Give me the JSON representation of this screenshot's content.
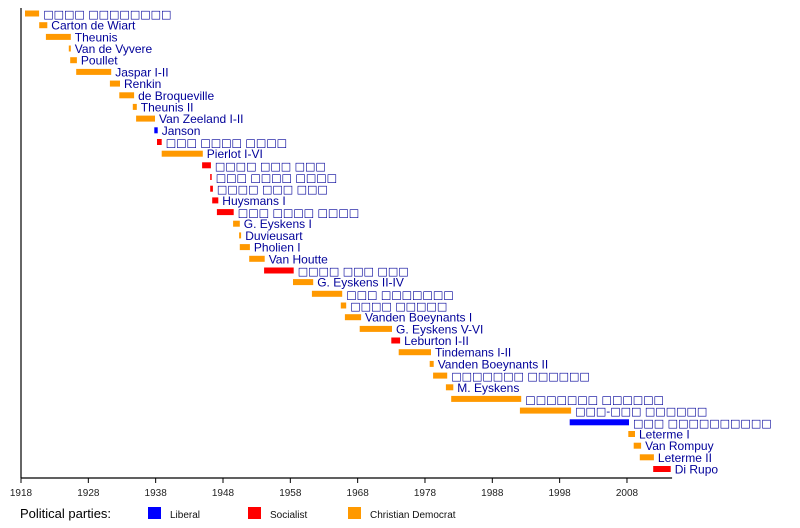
{
  "chart_data": {
    "type": "bar",
    "subtype": "horizontal-timeline",
    "title": "",
    "xlabel": "",
    "ylabel": "",
    "xlim": [
      1918,
      2014.7
    ],
    "x_ticks": [
      1918,
      1928,
      1938,
      1948,
      1958,
      1968,
      1978,
      1988,
      1998,
      2008
    ],
    "grid": false,
    "legend": {
      "title": "Political parties:",
      "placement": "bottom",
      "entries": [
        {
          "name": "Liberal",
          "color": "#0000ff"
        },
        {
          "name": "Socialist",
          "color": "#ff0000"
        },
        {
          "name": "Christian Democrat",
          "color": "#ff9900"
        }
      ]
    },
    "party_colors": {
      "Liberal": "#0000ff",
      "Socialist": "#ff0000",
      "Christian Democrat": "#ff9900"
    },
    "label_color": "#000099",
    "series": [
      {
        "label": "□□□□ □□□□□□□□",
        "party": "Christian Democrat",
        "start": 1918.6,
        "end": 1920.7,
        "tofu": true
      },
      {
        "label": "Carton de Wiart",
        "party": "Christian Democrat",
        "start": 1920.7,
        "end": 1921.9
      },
      {
        "label": "Theunis",
        "party": "Christian Democrat",
        "start": 1921.7,
        "end": 1925.4
      },
      {
        "label": "Van de Vyvere",
        "party": "Christian Democrat",
        "start": 1925.1,
        "end": 1925.4
      },
      {
        "label": "Poullet",
        "party": "Christian Democrat",
        "start": 1925.3,
        "end": 1926.3
      },
      {
        "label": "Jaspar I-II",
        "party": "Christian Democrat",
        "start": 1926.2,
        "end": 1931.4
      },
      {
        "label": "Renkin",
        "party": "Christian Democrat",
        "start": 1931.2,
        "end": 1932.7
      },
      {
        "label": "de Broqueville",
        "party": "Christian Democrat",
        "start": 1932.6,
        "end": 1934.8
      },
      {
        "label": "Theunis II",
        "party": "Christian Democrat",
        "start": 1934.6,
        "end": 1935.2
      },
      {
        "label": "Van Zeeland I-II",
        "party": "Christian Democrat",
        "start": 1935.1,
        "end": 1937.9
      },
      {
        "label": "Janson",
        "party": "Liberal",
        "start": 1937.8,
        "end": 1938.3
      },
      {
        "label": "□□□ □□□□ □□□□",
        "party": "Socialist",
        "start": 1938.2,
        "end": 1938.9,
        "tofu": true
      },
      {
        "label": "Pierlot I-VI",
        "party": "Christian Democrat",
        "start": 1938.9,
        "end": 1945.0
      },
      {
        "label": "□□□□ □□□ □□□",
        "party": "Socialist",
        "start": 1944.9,
        "end": 1946.2,
        "tofu": true
      },
      {
        "label": "□□□ □□□□ □□□□",
        "party": "Socialist",
        "start": 1946.1,
        "end": 1946.25,
        "tofu": true
      },
      {
        "label": "□□□□ □□□ □□□",
        "party": "Socialist",
        "start": 1946.1,
        "end": 1946.5,
        "tofu": true
      },
      {
        "label": "Huysmans I",
        "party": "Socialist",
        "start": 1946.4,
        "end": 1947.3
      },
      {
        "label": "□□□ □□□□ □□□□",
        "party": "Socialist",
        "start": 1947.1,
        "end": 1949.6,
        "tofu": true
      },
      {
        "label": "G. Eyskens I",
        "party": "Christian Democrat",
        "start": 1949.5,
        "end": 1950.5
      },
      {
        "label": "Duvieusart",
        "party": "Christian Democrat",
        "start": 1950.4,
        "end": 1950.7
      },
      {
        "label": "Pholien I",
        "party": "Christian Democrat",
        "start": 1950.5,
        "end": 1952.0
      },
      {
        "label": "Van Houtte",
        "party": "Christian Democrat",
        "start": 1951.9,
        "end": 1954.2
      },
      {
        "label": "□□□□ □□□ □□□",
        "party": "Socialist",
        "start": 1954.1,
        "end": 1958.5,
        "tofu": true
      },
      {
        "label": "G. Eyskens II-IV",
        "party": "Christian Democrat",
        "start": 1958.4,
        "end": 1961.4
      },
      {
        "label": "□□□ □□□□□□□",
        "party": "Christian Democrat",
        "start": 1961.2,
        "end": 1965.7,
        "tofu": true
      },
      {
        "label": "□□□□ □□□□□",
        "party": "Christian Democrat",
        "start": 1965.5,
        "end": 1966.3,
        "tofu": true
      },
      {
        "label": "Vanden Boeynants I",
        "party": "Christian Democrat",
        "start": 1966.1,
        "end": 1968.5
      },
      {
        "label": "G. Eyskens V-VI",
        "party": "Christian Democrat",
        "start": 1968.3,
        "end": 1973.1
      },
      {
        "label": "Leburton I-II",
        "party": "Socialist",
        "start": 1973.0,
        "end": 1974.3
      },
      {
        "label": "Tindemans I-II",
        "party": "Christian Democrat",
        "start": 1974.1,
        "end": 1978.9
      },
      {
        "label": "Vanden Boeynants II",
        "party": "Christian Democrat",
        "start": 1978.7,
        "end": 1979.3
      },
      {
        "label": "□□□□□□□ □□□□□□",
        "party": "Christian Democrat",
        "start": 1979.2,
        "end": 1981.3,
        "tofu": true
      },
      {
        "label": "M. Eyskens",
        "party": "Christian Democrat",
        "start": 1981.1,
        "end": 1982.2
      },
      {
        "label": "□□□□□□□ □□□□□□",
        "party": "Christian Democrat",
        "start": 1981.9,
        "end": 1992.3,
        "tofu": true
      },
      {
        "label": "□□□-□□□ □□□□□□",
        "party": "Christian Democrat",
        "start": 1992.1,
        "end": 1999.7,
        "tofu": true
      },
      {
        "label": "□□□ □□□□□□□□□□",
        "party": "Liberal",
        "start": 1999.5,
        "end": 2008.3,
        "tofu": true
      },
      {
        "label": "Leterme I",
        "party": "Christian Democrat",
        "start": 2008.2,
        "end": 2009.2
      },
      {
        "label": "Van Rompuy",
        "party": "Christian Democrat",
        "start": 2009.0,
        "end": 2010.1
      },
      {
        "label": "Leterme II",
        "party": "Christian Democrat",
        "start": 2009.9,
        "end": 2012.0
      },
      {
        "label": "Di Rupo",
        "party": "Socialist",
        "start": 2011.9,
        "end": 2014.5
      }
    ]
  }
}
